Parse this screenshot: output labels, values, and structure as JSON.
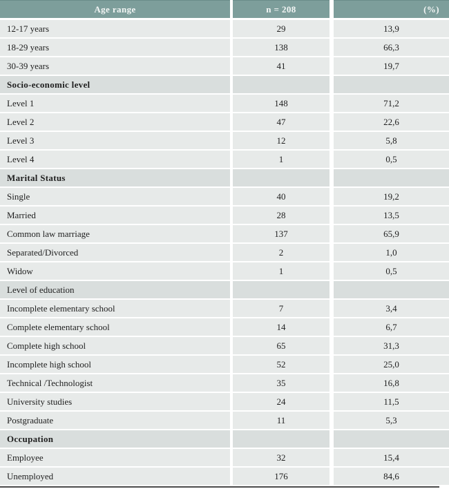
{
  "colors": {
    "header_bg": "#7d9e9b",
    "header_edge": "#6a8c89",
    "header_text": "#f3f6f5",
    "row_bg": "#e7eae9",
    "section_bg": "#d9dedd",
    "text": "#1f1f1f",
    "bottom_border": "#4a4a4a",
    "gap": "#ffffff"
  },
  "table": {
    "columns": [
      "Age range",
      "n = 208",
      "(%)"
    ],
    "rows": [
      {
        "type": "data",
        "label": "12-17 years",
        "n": "29",
        "pct": "13,9"
      },
      {
        "type": "data",
        "label": "18-29 years",
        "n": "138",
        "pct": "66,3"
      },
      {
        "type": "data",
        "label": "30-39 years",
        "n": "41",
        "pct": "19,7"
      },
      {
        "type": "section",
        "bold": true,
        "label": "Socio-economic level",
        "n": "",
        "pct": ""
      },
      {
        "type": "data",
        "label": "Level 1",
        "n": "148",
        "pct": "71,2"
      },
      {
        "type": "data",
        "label": "Level 2",
        "n": "47",
        "pct": "22,6"
      },
      {
        "type": "data",
        "label": "Level 3",
        "n": "12",
        "pct": "5,8"
      },
      {
        "type": "data",
        "label": "Level 4",
        "n": "1",
        "pct": "0,5"
      },
      {
        "type": "section",
        "bold": true,
        "label": "Marital Status",
        "n": "",
        "pct": ""
      },
      {
        "type": "data",
        "label": "Single",
        "n": "40",
        "pct": "19,2"
      },
      {
        "type": "data",
        "label": "Married",
        "n": "28",
        "pct": "13,5"
      },
      {
        "type": "data",
        "label": "Common law marriage",
        "n": "137",
        "pct": "65,9"
      },
      {
        "type": "data",
        "label": "Separated/Divorced",
        "n": "2",
        "pct": "1,0"
      },
      {
        "type": "data",
        "label": "Widow",
        "n": "1",
        "pct": "0,5"
      },
      {
        "type": "section",
        "bold": false,
        "label": "Level of education",
        "n": "",
        "pct": ""
      },
      {
        "type": "data",
        "label": "Incomplete elementary school",
        "n": "7",
        "pct": "3,4"
      },
      {
        "type": "data",
        "label": "Complete elementary school",
        "n": "14",
        "pct": "6,7"
      },
      {
        "type": "data",
        "label": "Complete high school",
        "n": "65",
        "pct": "31,3"
      },
      {
        "type": "data",
        "label": "Incomplete high school",
        "n": "52",
        "pct": "25,0"
      },
      {
        "type": "data",
        "label": "Technical /Technologist",
        "n": "35",
        "pct": "16,8"
      },
      {
        "type": "data",
        "label": "University studies",
        "n": "24",
        "pct": "11,5"
      },
      {
        "type": "data",
        "label": "Postgraduate",
        "n": "11",
        "pct": "5,3"
      },
      {
        "type": "section",
        "bold": true,
        "label": "Occupation",
        "n": "",
        "pct": ""
      },
      {
        "type": "data",
        "label": "Employee",
        "n": "32",
        "pct": "15,4"
      },
      {
        "type": "data",
        "label": "Unemployed",
        "n": "176",
        "pct": "84,6"
      }
    ]
  }
}
